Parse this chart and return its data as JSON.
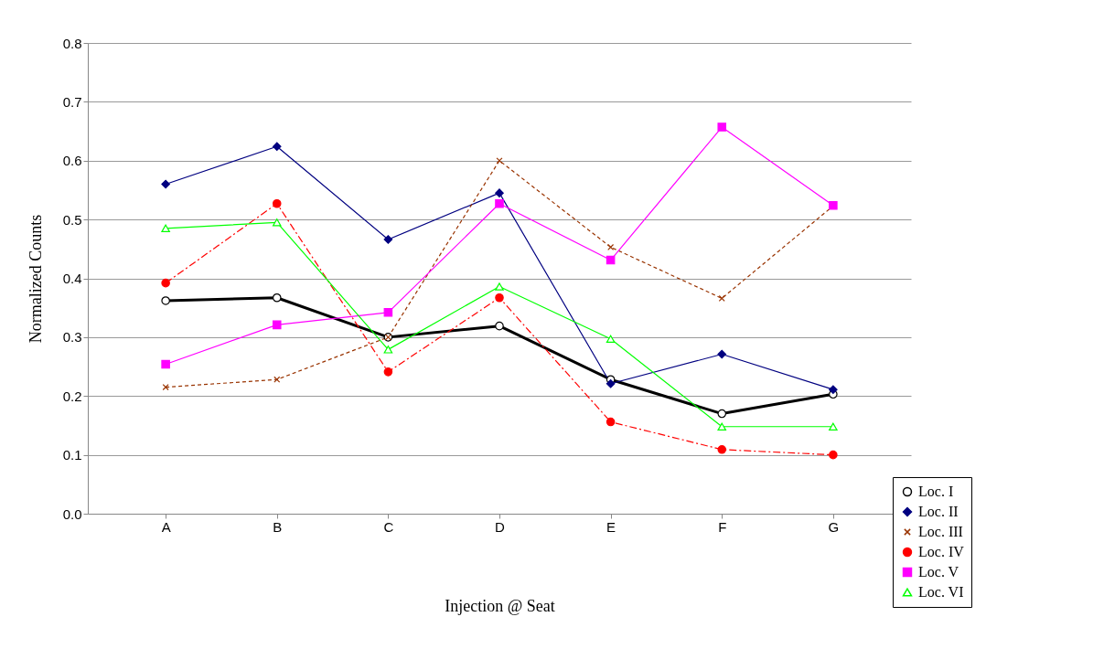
{
  "chart_data": {
    "type": "line",
    "xlabel": "Injection @ Seat",
    "ylabel": "Normalized Counts",
    "categories": [
      "A",
      "B",
      "C",
      "D",
      "E",
      "F",
      "G"
    ],
    "ylim": [
      0,
      0.8
    ],
    "yticks": [
      {
        "value": 0,
        "label": "0.0"
      },
      {
        "value": 0.1,
        "label": "0.1"
      },
      {
        "value": 0.2,
        "label": "0.2"
      },
      {
        "value": 0.3,
        "label": "0.3"
      },
      {
        "value": 0.4,
        "label": "0.4"
      },
      {
        "value": 0.5,
        "label": "0.5"
      },
      {
        "value": 0.6,
        "label": "0.6"
      },
      {
        "value": 0.7,
        "label": "0.7"
      },
      {
        "value": 0.8,
        "label": "0.8"
      }
    ],
    "grid": "y",
    "legend": "bottom right",
    "series": [
      {
        "name": "Loc. I",
        "color": "#000000",
        "marker": "circle",
        "line_style": "solid",
        "values": [
          0.362,
          0.367,
          0.3,
          0.319,
          0.228,
          0.17,
          0.203
        ]
      },
      {
        "name": "Loc. II",
        "color": "#000080",
        "marker": "diamond",
        "line_style": "solid",
        "values": [
          0.56,
          0.624,
          0.466,
          0.545,
          0.221,
          0.271,
          0.211
        ]
      },
      {
        "name": "Loc. III",
        "color": "#993300",
        "marker": "cross",
        "line_style": "dashed",
        "values": [
          0.215,
          0.228,
          0.3,
          0.6,
          0.453,
          0.366,
          0.523
        ]
      },
      {
        "name": "Loc. IV",
        "color": "#ff0000",
        "marker": "circle",
        "line_style": "dashed",
        "values": [
          0.392,
          0.527,
          0.241,
          0.367,
          0.156,
          0.109,
          0.1
        ]
      },
      {
        "name": "Loc. V",
        "color": "#ff00ff",
        "marker": "square",
        "line_style": "solid",
        "values": [
          0.254,
          0.321,
          0.342,
          0.527,
          0.431,
          0.657,
          0.524
        ]
      },
      {
        "name": "Loc. VI",
        "color": "#00ff00",
        "marker": "triangle",
        "line_style": "solid",
        "values": [
          0.485,
          0.495,
          0.279,
          0.386,
          0.297,
          0.148,
          0.148
        ]
      }
    ]
  }
}
